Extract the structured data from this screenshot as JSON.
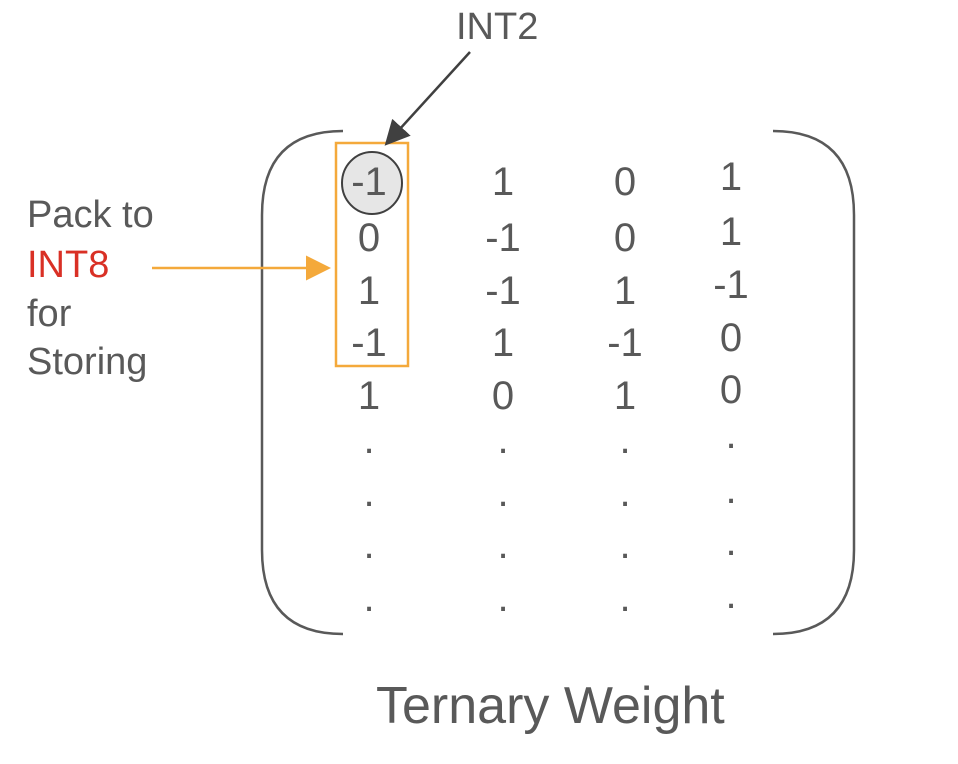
{
  "top_label": "INT2",
  "side_label": {
    "line1": "Pack to",
    "line2": "INT8",
    "line3": "for",
    "line4": "Storing"
  },
  "caption": "Ternary Weight",
  "matrix": {
    "columns": [
      [
        "-1",
        "0",
        "1",
        "-1",
        "1",
        ".",
        ".",
        ".",
        "."
      ],
      [
        "1",
        "-1",
        "-1",
        "1",
        "0",
        ".",
        ".",
        ".",
        "."
      ],
      [
        "0",
        "0",
        "1",
        "-1",
        "1",
        ".",
        ".",
        ".",
        "."
      ],
      [
        "1",
        "1",
        "-1",
        "0",
        "0",
        ".",
        ".",
        ".",
        "."
      ]
    ]
  },
  "colors": {
    "text": "#595959",
    "highlight_box": "#f4a93b",
    "int8_text": "#d93025",
    "circle_fill": "#e6e6e6",
    "arrow": "#404040"
  }
}
